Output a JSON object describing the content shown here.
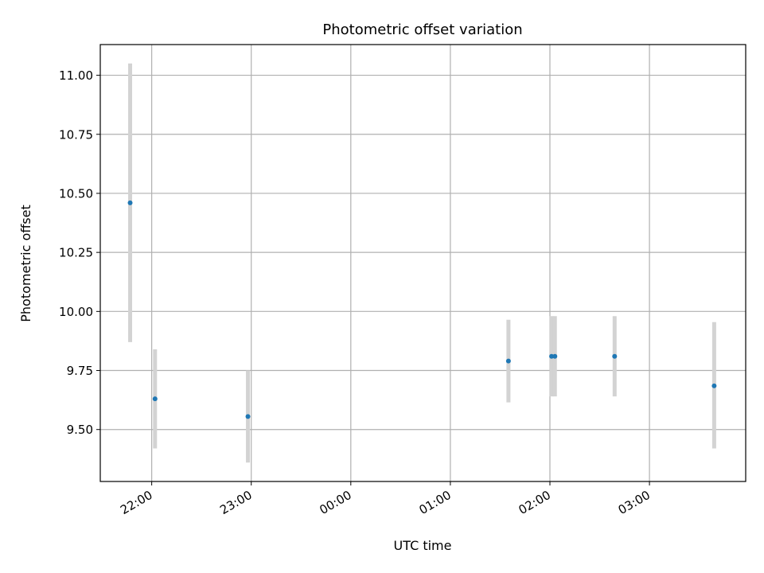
{
  "chart_data": {
    "type": "scatter",
    "title": "Photometric offset variation",
    "xlabel": "UTC time",
    "ylabel": "Photometric offset",
    "grid": true,
    "xlim": [
      "21:29",
      "03:58"
    ],
    "ylim": [
      9.28,
      11.13
    ],
    "x_ticks": [
      "22:00",
      "23:00",
      "00:00",
      "01:00",
      "02:00",
      "03:00"
    ],
    "y_ticks": [
      9.5,
      9.75,
      10.0,
      10.25,
      10.5,
      10.75,
      11.0
    ],
    "y_tick_labels": [
      "9.50",
      "9.75",
      "10.00",
      "10.25",
      "10.50",
      "10.75",
      "11.00"
    ],
    "point_color": "#1f77b4",
    "errorbar_color": "#d3d3d3",
    "points": [
      {
        "x": "21:47",
        "y": 10.46,
        "err_low": 9.87,
        "err_high": 11.05
      },
      {
        "x": "22:02",
        "y": 9.63,
        "err_low": 9.42,
        "err_high": 9.84
      },
      {
        "x": "22:58",
        "y": 9.555,
        "err_low": 9.36,
        "err_high": 9.75
      },
      {
        "x": "01:35",
        "y": 9.79,
        "err_low": 9.615,
        "err_high": 9.965
      },
      {
        "x": "02:01",
        "y": 9.81,
        "err_low": 9.64,
        "err_high": 9.98
      },
      {
        "x": "02:03",
        "y": 9.81,
        "err_low": 9.64,
        "err_high": 9.98
      },
      {
        "x": "02:39",
        "y": 9.81,
        "err_low": 9.64,
        "err_high": 9.98
      },
      {
        "x": "03:39",
        "y": 9.685,
        "err_low": 9.42,
        "err_high": 9.955
      }
    ]
  }
}
